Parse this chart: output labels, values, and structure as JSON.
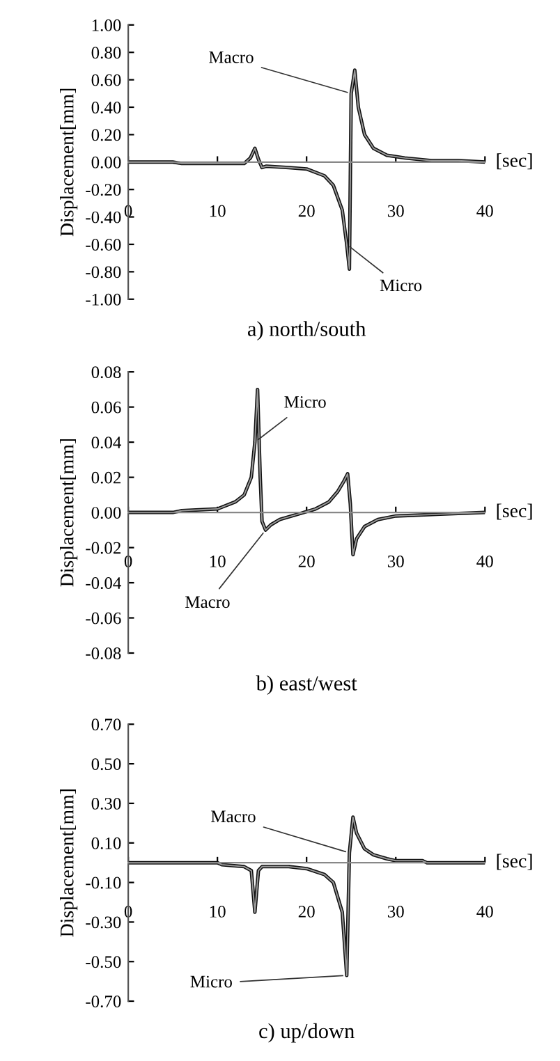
{
  "chart_data": [
    {
      "type": "line",
      "title": "a) north/south",
      "xlabel": "[sec]",
      "ylabel": "Displacement[mm]",
      "xlim": [
        0,
        40
      ],
      "xticks": [
        0,
        10,
        20,
        30,
        40
      ],
      "ylim": [
        -1,
        1
      ],
      "yticks": [
        {
          "value": 1,
          "label": "1.00"
        },
        {
          "value": 0.8,
          "label": "0.80"
        },
        {
          "value": 0.6,
          "label": "0.60"
        },
        {
          "value": 0.4,
          "label": "0.40"
        },
        {
          "value": 0.2,
          "label": "0.20"
        },
        {
          "value": 0,
          "label": "0.00"
        },
        {
          "value": -0.2,
          "label": "-0.20"
        },
        {
          "value": -0.4,
          "label": "-0.40"
        },
        {
          "value": -0.6,
          "label": "-0.60"
        },
        {
          "value": -0.8,
          "label": "-0.80"
        },
        {
          "value": -1,
          "label": "-1.00"
        }
      ],
      "grid": false,
      "legend": false,
      "x": [
        0,
        5,
        6,
        13,
        13.7,
        14.2,
        14.6,
        15,
        15.5,
        18,
        20,
        22,
        23,
        24,
        24.5,
        24.8,
        25,
        25.4,
        25.8,
        26.5,
        27.5,
        29,
        31,
        34,
        37,
        40
      ],
      "series": [
        {
          "name": "Micro",
          "color": "#111111",
          "values": [
            0,
            0,
            -0.01,
            -0.01,
            0.03,
            0.1,
            0.02,
            -0.04,
            -0.03,
            -0.04,
            -0.05,
            -0.1,
            -0.17,
            -0.35,
            -0.6,
            -0.78,
            0.5,
            0.67,
            0.4,
            0.2,
            0.1,
            0.05,
            0.03,
            0.01,
            0.01,
            0
          ]
        },
        {
          "name": "Macro",
          "color": "#9a9a9a",
          "values": [
            0,
            0,
            -0.01,
            -0.01,
            0.03,
            0.1,
            0.02,
            -0.04,
            -0.03,
            -0.04,
            -0.05,
            -0.1,
            -0.17,
            -0.35,
            -0.6,
            -0.78,
            0.5,
            0.67,
            0.4,
            0.2,
            0.1,
            0.05,
            0.03,
            0.01,
            0.01,
            0
          ]
        }
      ]
    },
    {
      "type": "line",
      "title": "b) east/west",
      "xlabel": "[sec]",
      "ylabel": "Displacement[mm]",
      "xlim": [
        0,
        40
      ],
      "xticks": [
        0,
        10,
        20,
        30,
        40
      ],
      "ylim": [
        -0.08,
        0.08
      ],
      "yticks": [
        {
          "value": 0.08,
          "label": "0.08"
        },
        {
          "value": 0.06,
          "label": "0.06"
        },
        {
          "value": 0.04,
          "label": "0.04"
        },
        {
          "value": 0.02,
          "label": "0.02"
        },
        {
          "value": 0,
          "label": "0.00"
        },
        {
          "value": -0.02,
          "label": "-0.02"
        },
        {
          "value": -0.04,
          "label": "-0.04"
        },
        {
          "value": -0.06,
          "label": "-0.06"
        },
        {
          "value": -0.08,
          "label": "-0.08"
        }
      ],
      "grid": false,
      "legend": false,
      "x": [
        0,
        5,
        6,
        10,
        12,
        13,
        13.8,
        14.2,
        14.5,
        14.8,
        15,
        15.4,
        16,
        17,
        19,
        21,
        22.5,
        23.5,
        24.2,
        24.6,
        24.9,
        25.2,
        25.6,
        26.5,
        28,
        30,
        35,
        40
      ],
      "series": [
        {
          "name": "Micro",
          "color": "#111111",
          "values": [
            0,
            0,
            0.001,
            0.002,
            0.006,
            0.01,
            0.02,
            0.04,
            0.07,
            0.02,
            -0.005,
            -0.01,
            -0.007,
            -0.004,
            -0.001,
            0.002,
            0.006,
            0.012,
            0.018,
            0.022,
            0.005,
            -0.024,
            -0.015,
            -0.008,
            -0.004,
            -0.002,
            -0.001,
            0
          ]
        },
        {
          "name": "Macro",
          "color": "#9a9a9a",
          "values": [
            0,
            0,
            0.001,
            0.002,
            0.006,
            0.01,
            0.02,
            0.04,
            0.07,
            0.02,
            -0.005,
            -0.01,
            -0.007,
            -0.004,
            -0.001,
            0.002,
            0.006,
            0.012,
            0.018,
            0.022,
            0.005,
            -0.024,
            -0.015,
            -0.008,
            -0.004,
            -0.002,
            -0.001,
            0
          ]
        }
      ]
    },
    {
      "type": "line",
      "title": "c) up/down",
      "xlabel": "[sec]",
      "ylabel": "Displacement[mm]",
      "xlim": [
        0,
        40
      ],
      "xticks": [
        0,
        10,
        20,
        30,
        40
      ],
      "ylim": [
        -0.7,
        0.7
      ],
      "yticks": [
        {
          "value": 0.7,
          "label": "0.70"
        },
        {
          "value": 0.5,
          "label": "0.50"
        },
        {
          "value": 0.3,
          "label": "0.30"
        },
        {
          "value": 0.1,
          "label": "0.10"
        },
        {
          "value": -0.1,
          "label": "-0.10"
        },
        {
          "value": -0.3,
          "label": "-0.30"
        },
        {
          "value": -0.5,
          "label": "-0.50"
        },
        {
          "value": -0.7,
          "label": "-0.70"
        }
      ],
      "grid": false,
      "legend": false,
      "x": [
        0,
        10,
        10.5,
        13,
        13.8,
        14.2,
        14.6,
        15,
        18,
        20,
        22,
        23,
        24,
        24.5,
        24.8,
        25.2,
        25.6,
        26.5,
        27.5,
        29,
        30,
        33,
        33.5,
        40
      ],
      "series": [
        {
          "name": "Micro",
          "color": "#111111",
          "values": [
            0,
            0,
            -0.01,
            -0.02,
            -0.04,
            -0.25,
            -0.04,
            -0.02,
            -0.02,
            -0.03,
            -0.06,
            -0.1,
            -0.25,
            -0.57,
            0.05,
            0.23,
            0.15,
            0.07,
            0.04,
            0.02,
            0.01,
            0.01,
            0,
            0
          ]
        },
        {
          "name": "Macro",
          "color": "#9a9a9a",
          "values": [
            0,
            0,
            -0.01,
            -0.02,
            -0.04,
            -0.25,
            -0.04,
            -0.02,
            -0.02,
            -0.03,
            -0.06,
            -0.1,
            -0.25,
            -0.57,
            0.05,
            0.23,
            0.15,
            0.07,
            0.04,
            0.02,
            0.01,
            0.01,
            0,
            0
          ]
        }
      ]
    }
  ]
}
